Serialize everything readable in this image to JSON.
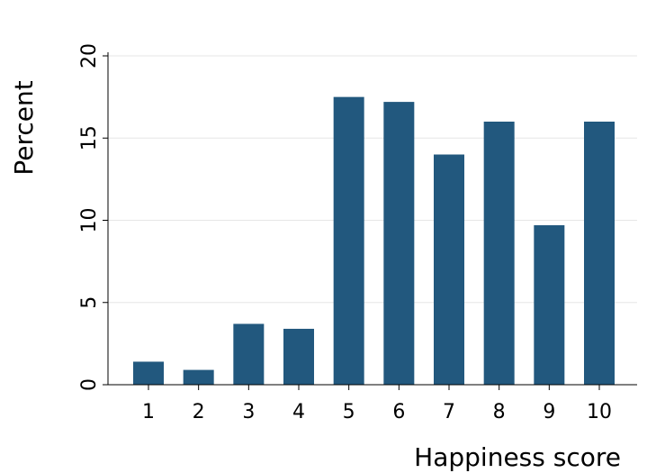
{
  "chart_data": {
    "type": "bar",
    "title": "",
    "xlabel": "Happiness score",
    "ylabel": "Percent",
    "categories": [
      "1",
      "2",
      "3",
      "4",
      "5",
      "6",
      "7",
      "8",
      "9",
      "10"
    ],
    "values": [
      1.4,
      0.9,
      3.7,
      3.4,
      17.5,
      17.2,
      14.0,
      16.0,
      9.7,
      16.0
    ],
    "ylim": [
      0,
      20
    ],
    "yticks": [
      "0",
      "5",
      "10",
      "15",
      "20"
    ],
    "grid": true,
    "legend": "none",
    "colors": {
      "bar": "#22587e",
      "grid": "#e6e6e6",
      "axis": "#000000"
    }
  }
}
